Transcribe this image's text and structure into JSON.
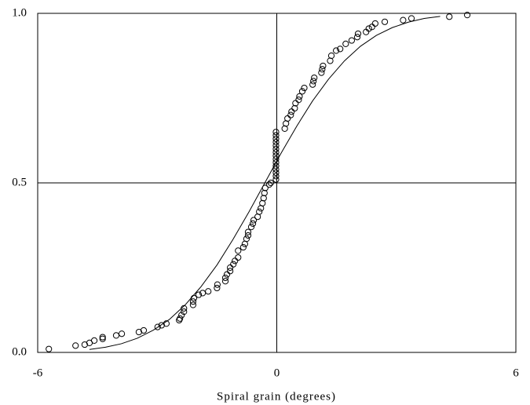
{
  "chart_data": {
    "type": "scatter",
    "xlabel": "Spiral grain (degrees)",
    "xlim": [
      -6,
      6
    ],
    "ylim": [
      0,
      1
    ],
    "xticks": [
      -6,
      0,
      6
    ],
    "yticks": [
      {
        "value": 0,
        "label": "0.0"
      },
      {
        "value": 0.5,
        "label": "0.5"
      },
      {
        "value": 1,
        "label": "1.0"
      }
    ],
    "grid": true,
    "series": [
      {
        "mode": "markers",
        "color": "#000000",
        "x": [
          -5.72,
          -5.05,
          -4.82,
          -4.7,
          -4.58,
          -4.37,
          -4.37,
          -4.03,
          -3.89,
          -3.46,
          -3.34,
          -2.99,
          -2.89,
          -2.77,
          -2.45,
          -2.43,
          -2.39,
          -2.33,
          -2.33,
          -2.1,
          -2.1,
          -2.08,
          -1.96,
          -1.86,
          -1.72,
          -1.5,
          -1.49,
          -1.29,
          -1.29,
          -1.25,
          -1.17,
          -1.17,
          -1.09,
          -1.05,
          -0.97,
          -0.97,
          -0.84,
          -0.8,
          -0.76,
          -0.72,
          -0.72,
          -0.64,
          -0.6,
          -0.58,
          -0.48,
          -0.44,
          -0.4,
          -0.36,
          -0.33,
          -0.31,
          -0.29,
          -0.19,
          -0.15,
          -0.02,
          -0.02,
          -0.02,
          -0.02,
          -0.02,
          -0.02,
          -0.02,
          -0.02,
          -0.02,
          -0.02,
          -0.02,
          -0.02,
          -0.02,
          -0.02,
          -0.02,
          0.2,
          0.23,
          0.27,
          0.35,
          0.37,
          0.45,
          0.47,
          0.55,
          0.57,
          0.64,
          0.69,
          0.9,
          0.92,
          0.94,
          1.12,
          1.14,
          1.16,
          1.34,
          1.37,
          1.49,
          1.59,
          1.73,
          1.88,
          2.02,
          2.04,
          2.24,
          2.31,
          2.39,
          2.47,
          2.71,
          3.17,
          3.38,
          4.33,
          4.78
        ],
        "values": [
          0.01,
          0.02,
          0.023,
          0.028,
          0.035,
          0.04,
          0.045,
          0.05,
          0.055,
          0.06,
          0.065,
          0.075,
          0.08,
          0.085,
          0.095,
          0.1,
          0.11,
          0.12,
          0.13,
          0.14,
          0.15,
          0.16,
          0.17,
          0.175,
          0.18,
          0.19,
          0.2,
          0.21,
          0.22,
          0.23,
          0.24,
          0.25,
          0.26,
          0.27,
          0.28,
          0.3,
          0.31,
          0.32,
          0.335,
          0.345,
          0.355,
          0.37,
          0.38,
          0.39,
          0.4,
          0.415,
          0.425,
          0.44,
          0.455,
          0.47,
          0.485,
          0.495,
          0.5,
          0.51,
          0.52,
          0.53,
          0.54,
          0.55,
          0.56,
          0.57,
          0.58,
          0.59,
          0.6,
          0.61,
          0.62,
          0.63,
          0.64,
          0.65,
          0.66,
          0.675,
          0.69,
          0.7,
          0.71,
          0.72,
          0.735,
          0.745,
          0.755,
          0.77,
          0.78,
          0.79,
          0.8,
          0.81,
          0.825,
          0.835,
          0.845,
          0.86,
          0.875,
          0.89,
          0.895,
          0.91,
          0.92,
          0.93,
          0.94,
          0.945,
          0.955,
          0.96,
          0.97,
          0.975,
          0.98,
          0.985,
          0.99,
          0.995
        ]
      },
      {
        "mode": "line",
        "color": "#000000",
        "x": [
          -4.7,
          -4.3,
          -3.9,
          -3.5,
          -3.1,
          -2.7,
          -2.3,
          -1.9,
          -1.5,
          -1.1,
          -0.7,
          -0.3,
          0.1,
          0.5,
          0.9,
          1.3,
          1.7,
          2.1,
          2.5,
          2.9,
          3.3,
          3.7,
          4.1
        ],
        "values": [
          0.0087,
          0.0154,
          0.0256,
          0.0418,
          0.0655,
          0.0968,
          0.14,
          0.194,
          0.258,
          0.333,
          0.414,
          0.5,
          0.586,
          0.667,
          0.742,
          0.806,
          0.86,
          0.903,
          0.935,
          0.958,
          0.974,
          0.985,
          0.991
        ]
      }
    ]
  }
}
